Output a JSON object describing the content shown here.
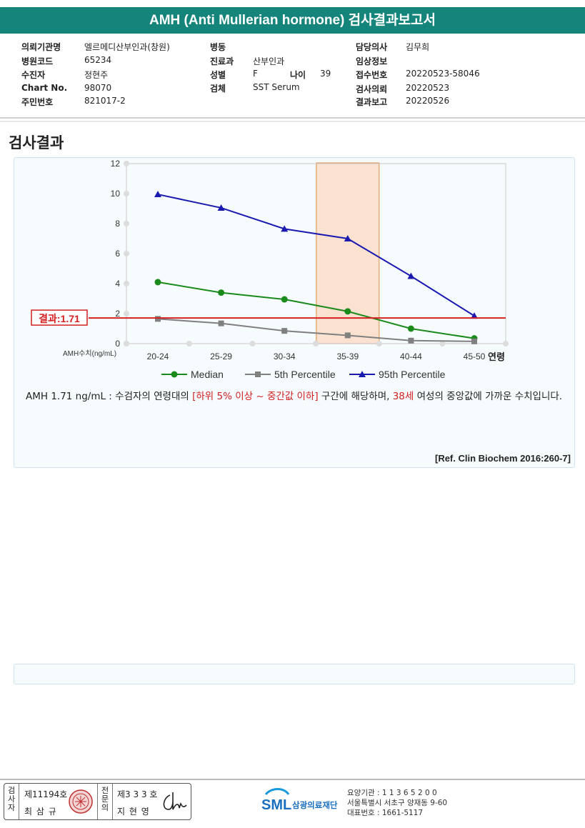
{
  "report": {
    "title": "AMH (Anti Mullerian hormone) 검사결과보고서",
    "section_title": "검사결과"
  },
  "info": {
    "institution_label": "의뢰기관명",
    "institution": "엘르메디산부인과(창원)",
    "hospital_code_label": "병원코드",
    "hospital_code": "65234",
    "patient_label": "수진자",
    "patient": "정현주",
    "chart_no_label": "Chart No.",
    "chart_no": "98070",
    "resident_no_label": "주민번호",
    "resident_no": "821017-2",
    "ward_label": "병동",
    "ward": "",
    "department_label": "진료과",
    "department": "산부인과",
    "sex_label": "성별",
    "sex": "F",
    "age_label": "나이",
    "age": "39",
    "specimen_label": "검체",
    "specimen": "SST Serum",
    "doctor_label": "담당의사",
    "doctor": "김무희",
    "clinical_info_label": "임상정보",
    "clinical_info": "",
    "receipt_no_label": "접수번호",
    "receipt_no": "20220523-58046",
    "request_date_label": "검사의뢰",
    "request_date": "20220523",
    "report_date_label": "결과보고",
    "report_date": "20220526"
  },
  "chart_data": {
    "type": "line",
    "categories": [
      "20-24",
      "25-29",
      "30-34",
      "35-39",
      "40-44",
      "45-50"
    ],
    "ylabel": "AMH수치(ng/mL)",
    "xlabel": "연령",
    "ylim": [
      0,
      12
    ],
    "yticks": [
      "0",
      "2",
      "4",
      "6",
      "8",
      "10",
      "12"
    ],
    "grid": false,
    "legend_position": "bottom",
    "series": [
      {
        "name": "Median",
        "color": "#1a8a1a",
        "marker": "circle",
        "values": [
          4.1,
          3.4,
          2.95,
          2.15,
          1.0,
          0.35
        ]
      },
      {
        "name": "5th Percentile",
        "color": "#808080",
        "marker": "square",
        "values": [
          1.65,
          1.35,
          0.85,
          0.55,
          0.2,
          0.15
        ]
      },
      {
        "name": "95th Percentile",
        "color": "#1a1ab0",
        "marker": "triangle",
        "values": [
          9.95,
          9.05,
          7.65,
          7.0,
          4.5,
          1.85
        ]
      }
    ],
    "highlight_category": "35-39",
    "result": {
      "value": 1.71,
      "label": "결과:1.71",
      "color": "#d42020"
    }
  },
  "result_text": {
    "part1": "AMH  1.71 ng/mL : 수검자의 연령대의 ",
    "range": "[하위 5% 이상 ~ 중간값 이하]",
    "part2": "  구간에 해당하며, ",
    "age": "38세",
    "part3": " 여성의 중앙값에 가까운 수치입니다.",
    "reference": "[Ref. Clin Biochem 2016:260-7]"
  },
  "footer": {
    "examiner_label": "검사자",
    "examiner_license": "제11194호",
    "examiner_name": "최 삼 규",
    "confirmer_label": "전문의",
    "confirmer_license": "제3 3 3 호",
    "confirmer_name": "지 현 영",
    "org_logo_text": "SML",
    "org_name": "삼광의료재단",
    "org_code": "요양기관 : 1 1 3 6 5 2 0 0",
    "org_address": "서울특별시 서초구 양재동 9-60",
    "org_phone": "대표번호 : 1661-5117",
    "accent_color": "#15847a"
  }
}
